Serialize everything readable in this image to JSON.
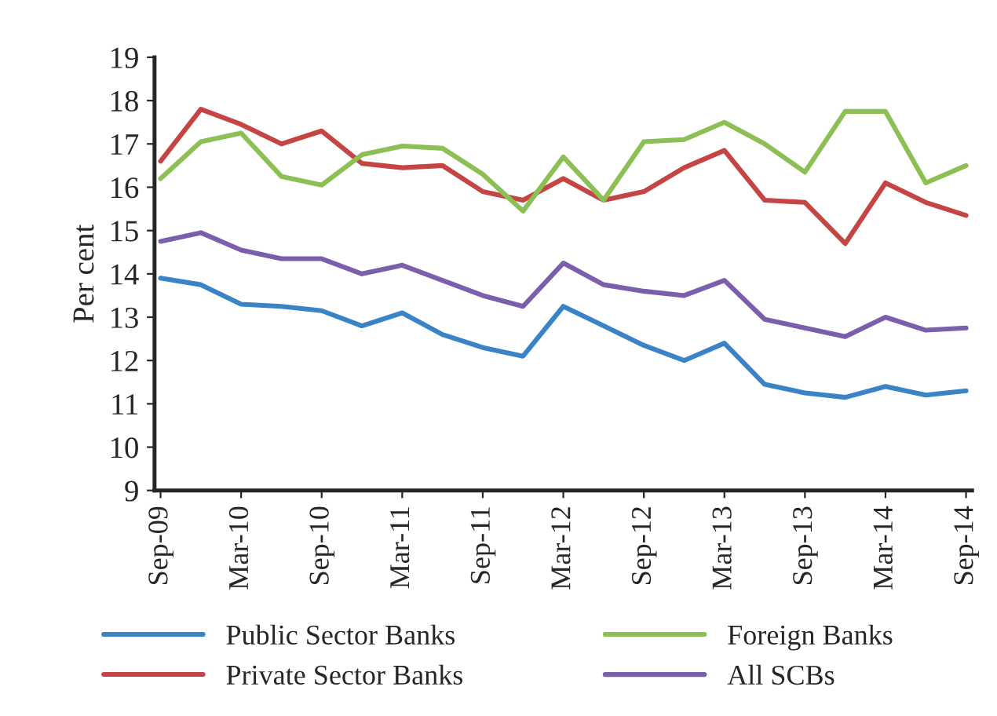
{
  "chart_data": {
    "type": "line",
    "ylabel": "Per cent",
    "categories": [
      "Sep-09",
      null,
      "Mar-10",
      null,
      "Sep-10",
      null,
      "Mar-11",
      null,
      "Sep-11",
      null,
      "Mar-12",
      null,
      "Sep-12",
      null,
      "Mar-13",
      null,
      "Sep-13",
      null,
      "Mar-14",
      null,
      "Sep-14"
    ],
    "series": [
      {
        "name": "Public Sector Banks",
        "color": "#3a83c6",
        "values": [
          13.9,
          13.75,
          13.3,
          13.25,
          13.15,
          12.8,
          13.1,
          12.6,
          12.3,
          12.1,
          13.25,
          12.8,
          12.35,
          12.0,
          12.4,
          11.45,
          11.25,
          11.15,
          11.4,
          11.2,
          11.3
        ]
      },
      {
        "name": "Private Sector Banks",
        "color": "#c44543",
        "values": [
          16.6,
          17.8,
          17.45,
          17.0,
          17.3,
          16.55,
          16.45,
          16.5,
          15.9,
          15.7,
          16.2,
          15.7,
          15.9,
          16.45,
          16.85,
          15.7,
          15.65,
          14.7,
          16.1,
          15.65,
          15.35
        ]
      },
      {
        "name": "Foreign Banks",
        "color": "#8cbf54",
        "values": [
          16.2,
          17.05,
          17.25,
          16.25,
          16.05,
          16.75,
          16.95,
          16.9,
          16.3,
          15.45,
          16.7,
          15.7,
          17.05,
          17.1,
          17.5,
          17.0,
          16.35,
          17.75,
          17.75,
          16.1,
          16.5
        ]
      },
      {
        "name": "All SCBs",
        "color": "#7b5fad",
        "values": [
          14.75,
          14.95,
          14.55,
          14.35,
          14.35,
          14.0,
          14.2,
          13.85,
          13.5,
          13.25,
          14.25,
          13.75,
          13.6,
          13.5,
          13.85,
          12.95,
          12.75,
          12.55,
          13.0,
          12.7,
          12.75
        ]
      }
    ],
    "ylim": [
      9,
      19
    ],
    "yticks": [
      9,
      10,
      11,
      12,
      13,
      14,
      15,
      16,
      17,
      18,
      19
    ],
    "grid": false,
    "legend": "bottom",
    "marker": "none",
    "line_style": "solid"
  }
}
